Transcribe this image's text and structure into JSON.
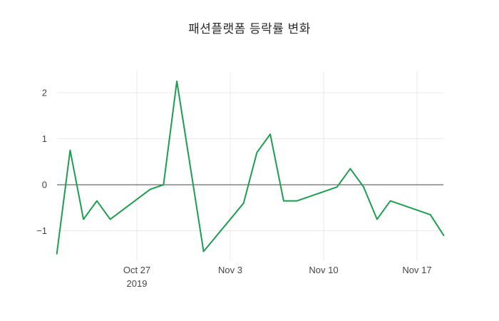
{
  "chart_data": {
    "type": "line",
    "title": "패션플랫폼 등락률 변화",
    "xlabel": "",
    "ylabel": "",
    "line_color": "#1b9e4f",
    "zero_line_color": "#444444",
    "grid_color": "#e8e8e8",
    "grid": true,
    "legend": "none",
    "ylim": [
      -1.65,
      2.47
    ],
    "x": [
      "2019-10-21",
      "2019-10-22",
      "2019-10-23",
      "2019-10-24",
      "2019-10-25",
      "2019-10-28",
      "2019-10-29",
      "2019-10-30",
      "2019-10-31",
      "2019-11-01",
      "2019-11-04",
      "2019-11-05",
      "2019-11-06",
      "2019-11-07",
      "2019-11-08",
      "2019-11-11",
      "2019-11-12",
      "2019-11-13",
      "2019-11-14",
      "2019-11-15",
      "2019-11-18",
      "2019-11-19"
    ],
    "values": [
      -1.5,
      0.75,
      -0.75,
      -0.35,
      -0.75,
      -0.1,
      0.0,
      2.25,
      0.4,
      -1.45,
      -0.4,
      0.7,
      1.1,
      -0.35,
      -0.35,
      -0.05,
      0.35,
      -0.05,
      -0.75,
      -0.35,
      -0.65,
      -1.1
    ],
    "yticks": [
      {
        "value": -1,
        "label": "−1"
      },
      {
        "value": 0,
        "label": "0"
      },
      {
        "value": 1,
        "label": "1"
      },
      {
        "value": 2,
        "label": "2"
      }
    ],
    "xticks": [
      {
        "date": "2019-10-27",
        "label": "Oct 27",
        "sublabel": "2019"
      },
      {
        "date": "2019-11-03",
        "label": "Nov 3",
        "sublabel": ""
      },
      {
        "date": "2019-11-10",
        "label": "Nov 10",
        "sublabel": ""
      },
      {
        "date": "2019-11-17",
        "label": "Nov 17",
        "sublabel": ""
      }
    ]
  }
}
